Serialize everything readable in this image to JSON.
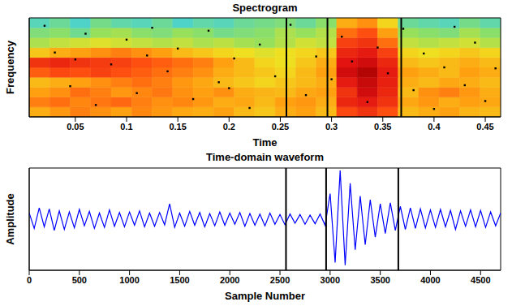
{
  "chart_data": [
    {
      "type": "heatmap",
      "title": "Spectrogram",
      "x_label": "Time",
      "y_label": "Frequency",
      "xlim": [
        0.005,
        0.465
      ],
      "xticks": [
        0.05,
        0.1,
        0.15,
        0.2,
        0.25,
        0.3,
        0.35,
        0.4,
        0.45
      ],
      "ylim": [
        0,
        10
      ],
      "tick_labels": "x",
      "clim": [
        0.35,
        1
      ],
      "time_bins": [
        0.005,
        0.025,
        0.045,
        0.065,
        0.085,
        0.105,
        0.125,
        0.145,
        0.165,
        0.185,
        0.205,
        0.225,
        0.245,
        0.265,
        0.285,
        0.305,
        0.325,
        0.345,
        0.365,
        0.385,
        0.405,
        0.425,
        0.445,
        0.465
      ],
      "frequency_bins": [
        0,
        1,
        2,
        3,
        4,
        5,
        6,
        7,
        8,
        9,
        10
      ],
      "cells": [
        [
          0.72,
          0.75,
          0.78,
          0.76,
          0.74,
          0.77,
          0.75,
          0.73,
          0.72,
          0.74,
          0.7,
          0.68,
          0.72,
          0.74,
          0.7,
          0.85,
          0.88,
          0.84,
          0.7,
          0.72,
          0.74,
          0.71,
          0.7
        ],
        [
          0.78,
          0.8,
          0.77,
          0.79,
          0.81,
          0.78,
          0.76,
          0.77,
          0.75,
          0.72,
          0.73,
          0.7,
          0.74,
          0.75,
          0.72,
          0.9,
          0.92,
          0.88,
          0.73,
          0.75,
          0.72,
          0.74,
          0.73
        ],
        [
          0.74,
          0.76,
          0.8,
          0.78,
          0.75,
          0.77,
          0.79,
          0.76,
          0.74,
          0.76,
          0.72,
          0.71,
          0.7,
          0.73,
          0.74,
          0.88,
          0.95,
          0.9,
          0.7,
          0.76,
          0.78,
          0.75,
          0.72
        ],
        [
          0.7,
          0.72,
          0.74,
          0.76,
          0.78,
          0.8,
          0.78,
          0.75,
          0.73,
          0.7,
          0.68,
          0.66,
          0.68,
          0.7,
          0.72,
          0.92,
          0.96,
          0.91,
          0.72,
          0.7,
          0.73,
          0.72,
          0.7
        ],
        [
          0.82,
          0.85,
          0.84,
          0.86,
          0.84,
          0.82,
          0.8,
          0.78,
          0.76,
          0.72,
          0.7,
          0.68,
          0.66,
          0.7,
          0.74,
          0.95,
          0.98,
          0.92,
          0.74,
          0.72,
          0.7,
          0.74,
          0.72
        ],
        [
          0.88,
          0.9,
          0.88,
          0.87,
          0.86,
          0.84,
          0.82,
          0.8,
          0.78,
          0.74,
          0.7,
          0.66,
          0.64,
          0.68,
          0.72,
          0.93,
          0.95,
          0.9,
          0.7,
          0.68,
          0.7,
          0.72,
          0.7
        ],
        [
          0.68,
          0.72,
          0.74,
          0.76,
          0.78,
          0.76,
          0.74,
          0.7,
          0.68,
          0.66,
          0.64,
          0.62,
          0.64,
          0.66,
          0.68,
          0.9,
          0.92,
          0.86,
          0.66,
          0.64,
          0.66,
          0.68,
          0.66
        ],
        [
          0.55,
          0.58,
          0.6,
          0.62,
          0.6,
          0.58,
          0.56,
          0.58,
          0.55,
          0.57,
          0.54,
          0.52,
          0.56,
          0.6,
          0.58,
          0.86,
          0.88,
          0.8,
          0.58,
          0.56,
          0.58,
          0.6,
          0.56
        ],
        [
          0.48,
          0.5,
          0.45,
          0.52,
          0.54,
          0.5,
          0.48,
          0.52,
          0.5,
          0.46,
          0.48,
          0.5,
          0.55,
          0.52,
          0.56,
          0.8,
          0.84,
          0.74,
          0.52,
          0.5,
          0.48,
          0.54,
          0.5
        ],
        [
          0.4,
          0.44,
          0.38,
          0.46,
          0.42,
          0.4,
          0.44,
          0.38,
          0.42,
          0.4,
          0.44,
          0.46,
          0.48,
          0.44,
          0.5,
          0.72,
          0.76,
          0.66,
          0.44,
          0.42,
          0.4,
          0.46,
          0.42
        ]
      ],
      "peaks": {
        "x": [
          0.02,
          0.03,
          0.045,
          0.06,
          0.07,
          0.085,
          0.1,
          0.11,
          0.125,
          0.14,
          0.15,
          0.165,
          0.18,
          0.19,
          0.205,
          0.22,
          0.23,
          0.245,
          0.26,
          0.275,
          0.285,
          0.3,
          0.31,
          0.32,
          0.335,
          0.345,
          0.355,
          0.37,
          0.38,
          0.39,
          0.4,
          0.41,
          0.42,
          0.43,
          0.44,
          0.45,
          0.46,
          0.05,
          0.12,
          0.2
        ],
        "y": [
          9.2,
          6.5,
          3.1,
          8.4,
          1.2,
          5.3,
          7.8,
          2.4,
          9.0,
          4.6,
          6.9,
          1.8,
          8.7,
          3.5,
          5.9,
          0.9,
          7.3,
          4.1,
          9.3,
          2.2,
          6.1,
          3.8,
          8.1,
          5.6,
          1.5,
          7.0,
          4.4,
          8.9,
          2.7,
          6.4,
          0.8,
          5.0,
          9.1,
          3.2,
          7.5,
          1.6,
          4.9,
          5.8,
          6.2,
          2.9
        ]
      },
      "vlines": [
        0.256,
        0.296,
        0.368
      ]
    },
    {
      "type": "line",
      "title": "Time-domain waveform",
      "x_label": "Sample Number",
      "y_label": "Amplitude",
      "xlim": [
        0,
        4700
      ],
      "xticks": [
        0,
        500,
        1000,
        1500,
        2000,
        2500,
        3000,
        3500,
        4000,
        4500
      ],
      "ylim": [
        -1,
        1
      ],
      "tick_labels": "x",
      "color": "#0000ff",
      "x": [
        0,
        50,
        100,
        150,
        200,
        250,
        300,
        350,
        400,
        450,
        500,
        550,
        600,
        650,
        700,
        750,
        800,
        850,
        900,
        950,
        1000,
        1050,
        1100,
        1150,
        1200,
        1250,
        1300,
        1350,
        1400,
        1450,
        1500,
        1550,
        1600,
        1650,
        1700,
        1750,
        1800,
        1850,
        1900,
        1950,
        2000,
        2050,
        2100,
        2150,
        2200,
        2250,
        2300,
        2350,
        2400,
        2450,
        2500,
        2550,
        2600,
        2650,
        2700,
        2750,
        2800,
        2850,
        2900,
        2950,
        3000,
        3050,
        3100,
        3150,
        3200,
        3250,
        3300,
        3350,
        3400,
        3450,
        3500,
        3550,
        3600,
        3650,
        3700,
        3750,
        3800,
        3850,
        3900,
        3950,
        4000,
        4050,
        4100,
        4150,
        4200,
        4250,
        4300,
        4350,
        4400,
        4450,
        4500,
        4550,
        4600,
        4650,
        4700
      ],
      "values": [
        0.12,
        -0.18,
        0.22,
        -0.15,
        0.2,
        -0.22,
        0.16,
        -0.2,
        0.14,
        -0.17,
        0.19,
        -0.13,
        0.15,
        -0.18,
        0.12,
        -0.16,
        0.18,
        -0.14,
        0.13,
        -0.15,
        0.14,
        -0.12,
        0.16,
        -0.15,
        0.12,
        -0.14,
        0.13,
        -0.11,
        0.3,
        -0.16,
        0.12,
        -0.14,
        0.15,
        -0.12,
        0.13,
        -0.15,
        0.11,
        -0.13,
        0.14,
        -0.12,
        0.12,
        -0.1,
        0.13,
        -0.14,
        0.11,
        -0.12,
        0.1,
        -0.13,
        0.12,
        -0.1,
        0.09,
        -0.11,
        0.1,
        -0.08,
        0.09,
        -0.1,
        0.08,
        -0.09,
        0.1,
        -0.12,
        0.5,
        -0.85,
        0.95,
        -0.9,
        0.7,
        -0.6,
        0.45,
        -0.5,
        0.38,
        -0.35,
        0.3,
        -0.28,
        0.32,
        -0.22,
        0.25,
        -0.2,
        0.22,
        -0.18,
        0.2,
        -0.17,
        0.18,
        -0.16,
        0.19,
        -0.15,
        0.17,
        -0.2,
        0.16,
        -0.14,
        0.18,
        -0.15,
        0.17,
        -0.16,
        0.14,
        -0.13,
        0.12
      ],
      "vlines": [
        2560,
        2960,
        3680
      ]
    }
  ]
}
